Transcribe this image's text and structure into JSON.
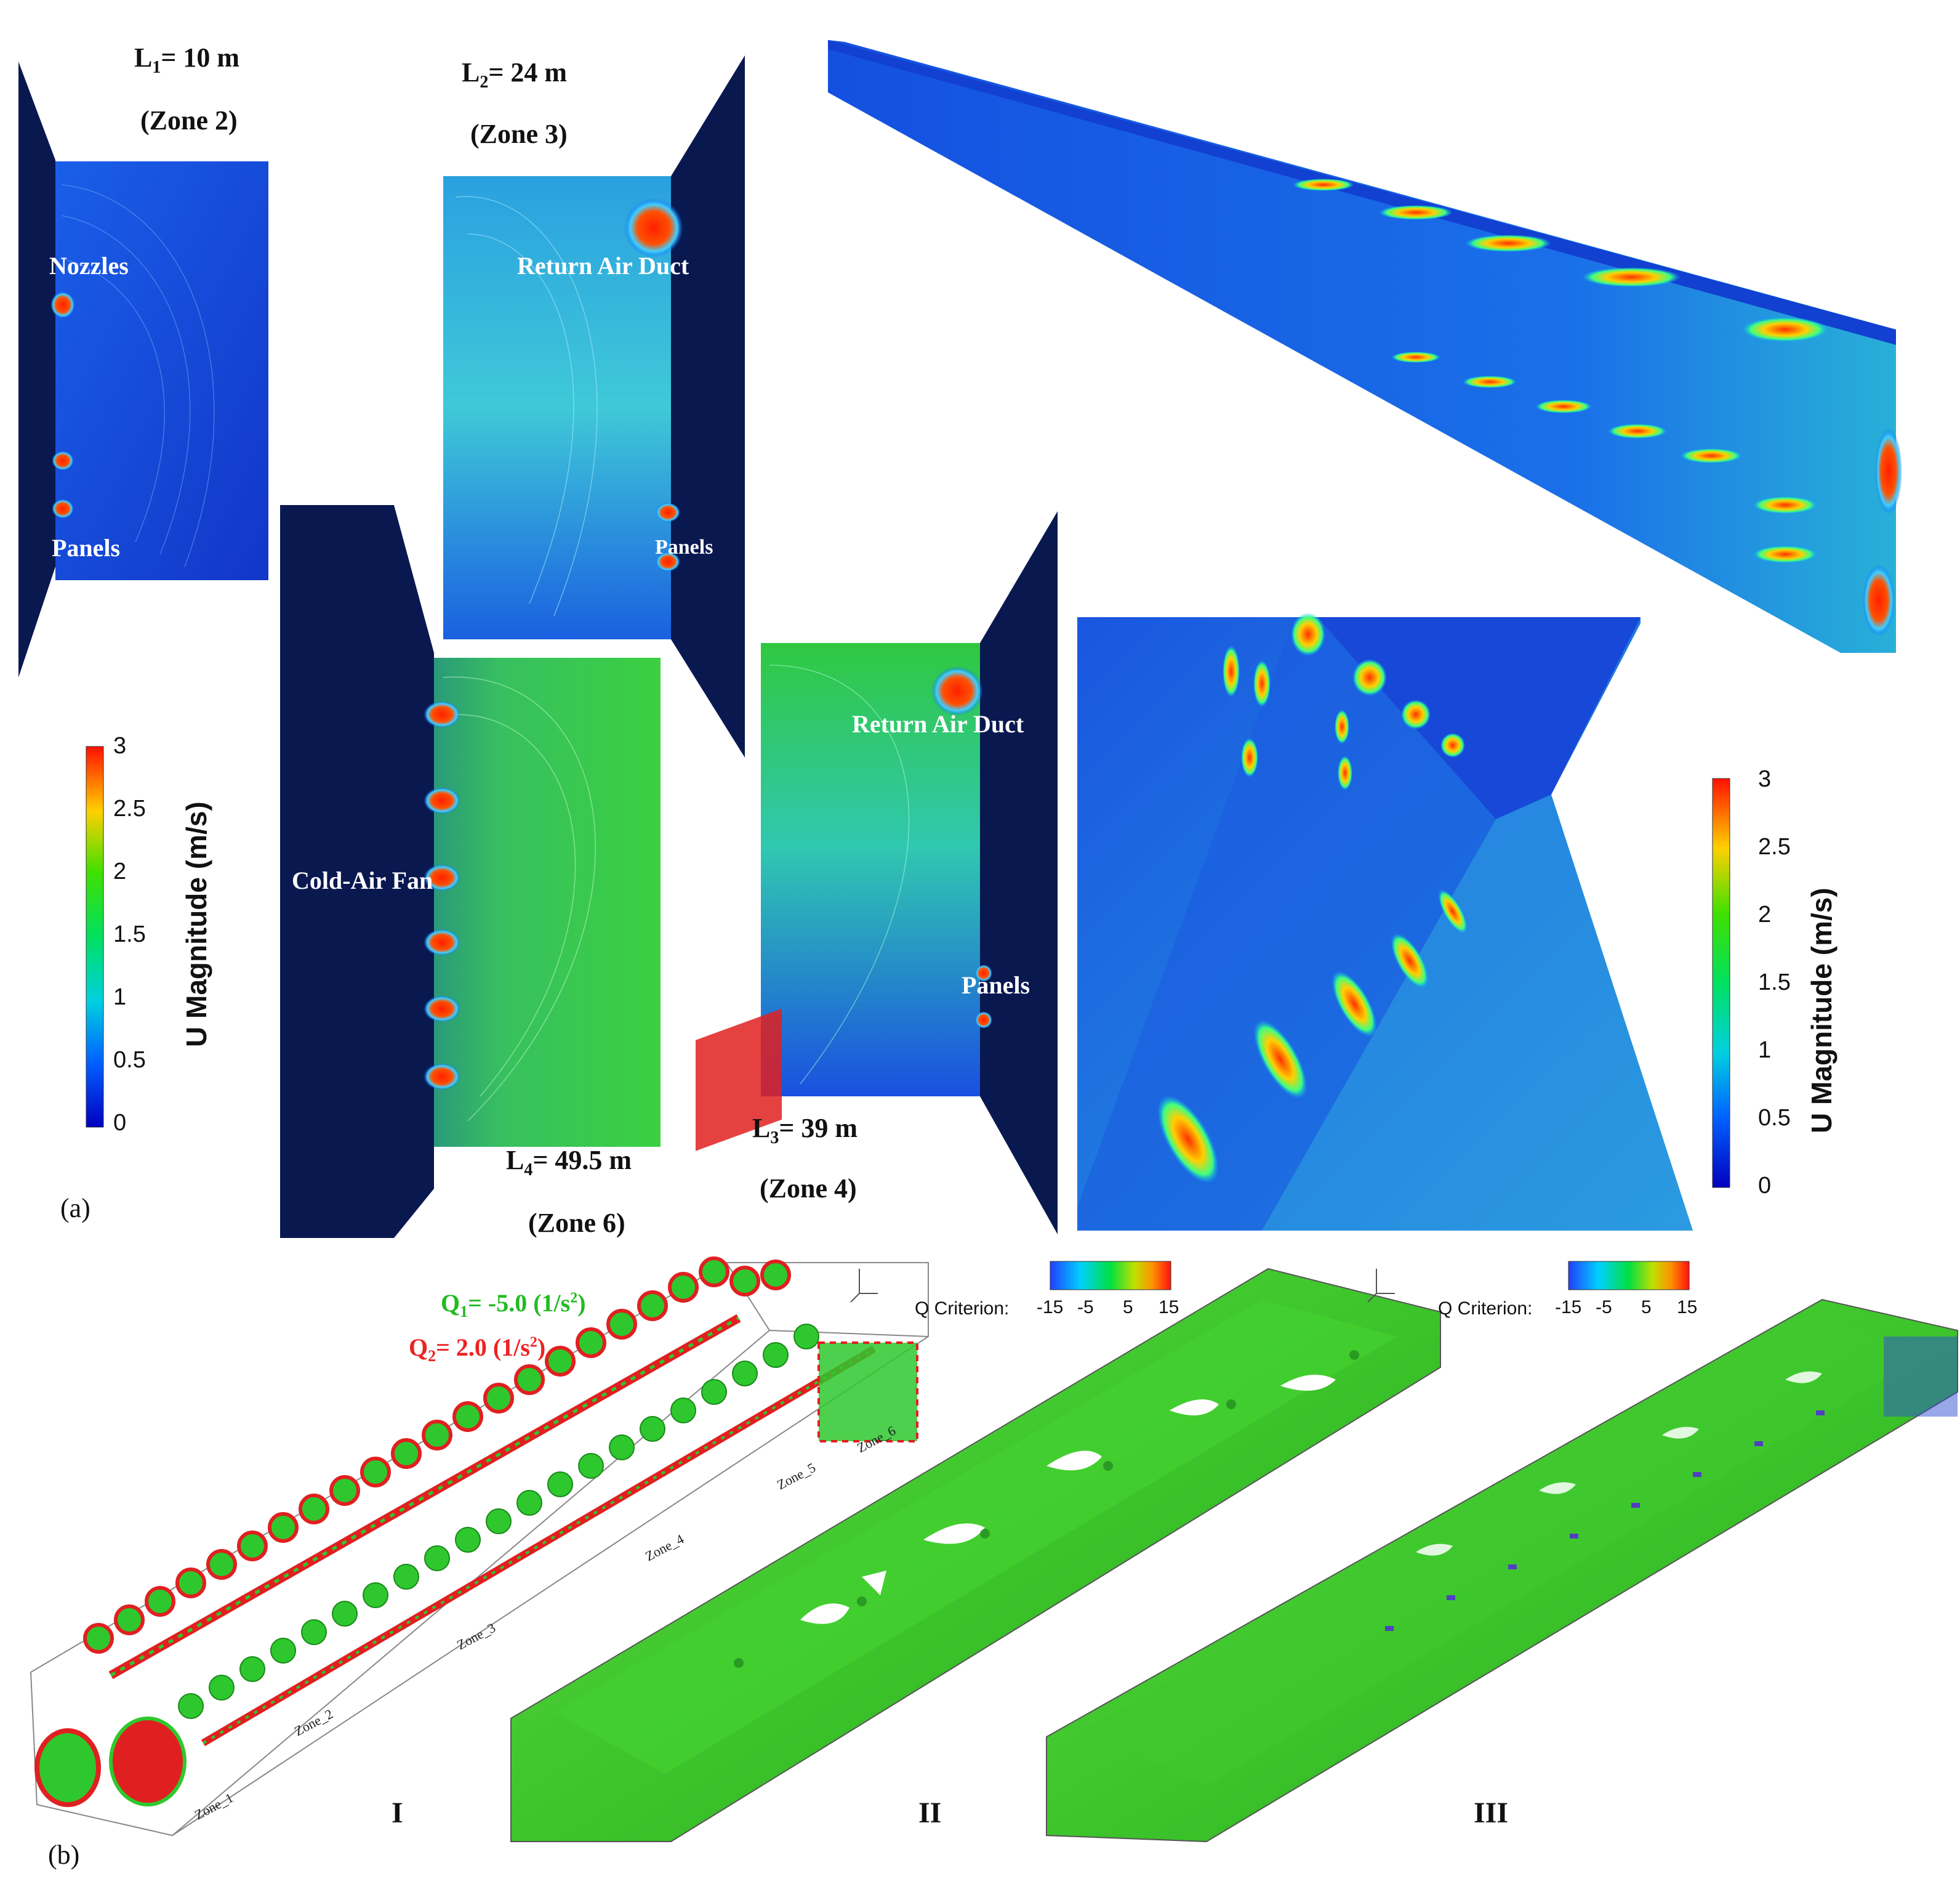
{
  "panel_a": {
    "label": "(a)",
    "zones": [
      {
        "length_prefix": "L",
        "length_sub": "1",
        "length_value": "= 10 m",
        "zone": "(Zone 2)"
      },
      {
        "length_prefix": "L",
        "length_sub": "2",
        "length_value": "= 24 m",
        "zone": "(Zone 3)"
      },
      {
        "length_prefix": "L",
        "length_sub": "4",
        "length_value": "= 49.5 m",
        "zone": "(Zone 6)"
      },
      {
        "length_prefix": "L",
        "length_sub": "3",
        "length_value": "= 39 m",
        "zone": "(Zone 4)"
      }
    ],
    "annotations": {
      "nozzles": "Nozzles",
      "panels": "Panels",
      "return_air_duct": "Return Air Duct",
      "cold_air_fan": "Cold-Air Fan"
    },
    "colorbar": {
      "title": "U Magnitude (m/s)",
      "ticks": [
        "3",
        "2.5",
        "2",
        "1.5",
        "1",
        "0.5",
        "0"
      ],
      "colors": [
        "#ff0000",
        "#ffa500",
        "#ffff00",
        "#00e000",
        "#00e0e0",
        "#0050ff",
        "#0000c0"
      ]
    }
  },
  "panel_b": {
    "label": "(b)",
    "q_values": {
      "q1_prefix": "Q",
      "q1_sub": "1",
      "q1_value": "= -5.0 (1/s",
      "q1_sup": "2",
      "q1_tail": ")",
      "q1_color": "#22bb22",
      "q2_prefix": "Q",
      "q2_sub": "2",
      "q2_value": "= 2.0 (1/s",
      "q2_sup": "2",
      "q2_tail": ")",
      "q2_color": "#ee2222"
    },
    "q_legend": {
      "label": "Q Criterion:",
      "ticks": [
        "-15",
        "-5",
        "5",
        "15"
      ]
    },
    "zone_labels": [
      "Zone_1",
      "Zone_2",
      "Zone_3",
      "Zone_4",
      "Zone_5",
      "Zone_6"
    ],
    "subfigures": [
      "I",
      "II",
      "III"
    ]
  }
}
